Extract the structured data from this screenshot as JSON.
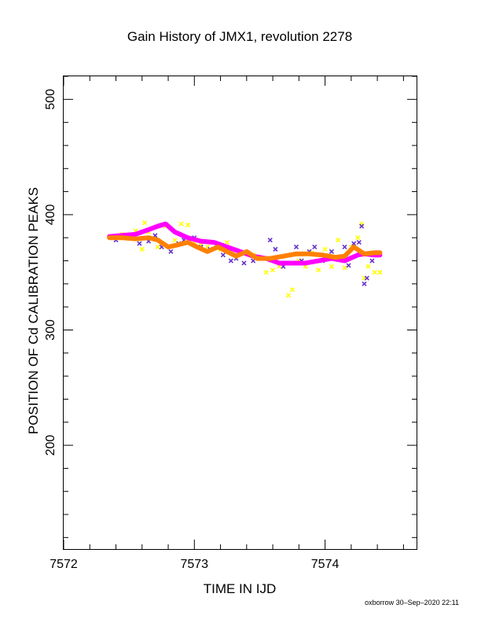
{
  "chart_data": {
    "type": "scatter",
    "title": "Gain History of JMX1, revolution 2278",
    "xlabel": "TIME IN IJD",
    "ylabel": "POSITION OF Cd CALIBRATION PEAKS",
    "xlim": [
      7572,
      7574.7
    ],
    "ylim": [
      110,
      520
    ],
    "x_ticks": [
      7572,
      7573,
      7574
    ],
    "y_ticks": [
      200,
      300,
      400,
      500
    ],
    "grid": false,
    "legend": "none",
    "series": [
      {
        "marker": "x",
        "color": "#ffff00",
        "x": [
          7572.35,
          7572.45,
          7572.55,
          7572.6,
          7572.62,
          7572.65,
          7572.72,
          7572.78,
          7572.85,
          7572.9,
          7572.95,
          7573.0,
          7573.05,
          7573.1,
          7573.2,
          7573.25,
          7573.3,
          7573.4,
          7573.45,
          7573.55,
          7573.6,
          7573.65,
          7573.72,
          7573.75,
          7573.8,
          7573.85,
          7573.9,
          7573.95,
          7574.0,
          7574.05,
          7574.1,
          7574.15,
          7574.2,
          7574.25,
          7574.28,
          7574.3,
          7574.33,
          7574.38,
          7574.42
        ],
        "y": [
          381,
          383,
          386,
          370,
          393,
          385,
          372,
          390,
          378,
          392,
          391,
          376,
          374,
          372,
          370,
          376,
          366,
          366,
          365,
          350,
          352,
          355,
          330,
          335,
          360,
          355,
          367,
          352,
          370,
          355,
          378,
          354,
          372,
          380,
          392,
          345,
          355,
          350,
          350
        ]
      },
      {
        "marker": "x",
        "color": "#6633cc",
        "x": [
          7572.4,
          7572.5,
          7572.58,
          7572.65,
          7572.7,
          7572.75,
          7572.82,
          7572.88,
          7572.92,
          7573.0,
          7573.05,
          7573.12,
          7573.18,
          7573.22,
          7573.28,
          7573.32,
          7573.38,
          7573.45,
          7573.52,
          7573.58,
          7573.62,
          7573.68,
          7573.72,
          7573.78,
          7573.82,
          7573.88,
          7573.92,
          7573.98,
          7574.05,
          7574.1,
          7574.15,
          7574.18,
          7574.22,
          7574.26,
          7574.28,
          7574.3,
          7574.32,
          7574.36,
          7574.4
        ],
        "y": [
          378,
          380,
          375,
          377,
          382,
          372,
          368,
          375,
          378,
          380,
          372,
          370,
          372,
          365,
          360,
          362,
          358,
          360,
          362,
          378,
          370,
          355,
          358,
          372,
          360,
          368,
          372,
          360,
          368,
          362,
          372,
          356,
          375,
          376,
          390,
          340,
          345,
          360,
          365
        ]
      },
      {
        "marker": "line",
        "color": "#ff00ff",
        "x": [
          7572.35,
          7572.45,
          7572.55,
          7572.65,
          7572.72,
          7572.78,
          7572.85,
          7572.95,
          7573.05,
          7573.15,
          7573.25,
          7573.35,
          7573.45,
          7573.55,
          7573.65,
          7573.75,
          7573.85,
          7573.95,
          7574.05,
          7574.15,
          7574.25,
          7574.3,
          7574.38,
          7574.42
        ],
        "y": [
          381,
          382,
          383,
          387,
          390,
          392,
          385,
          380,
          377,
          376,
          372,
          368,
          364,
          362,
          358,
          358,
          358,
          360,
          362,
          360,
          365,
          366,
          365,
          365
        ]
      },
      {
        "marker": "line",
        "color": "#ff8000",
        "x": [
          7572.35,
          7572.45,
          7572.55,
          7572.65,
          7572.72,
          7572.8,
          7572.88,
          7572.95,
          7573.02,
          7573.1,
          7573.18,
          7573.25,
          7573.32,
          7573.4,
          7573.48,
          7573.58,
          7573.68,
          7573.78,
          7573.88,
          7573.98,
          7574.08,
          7574.15,
          7574.22,
          7574.3,
          7574.38,
          7574.42
        ],
        "y": [
          380,
          380,
          379,
          380,
          378,
          372,
          374,
          376,
          372,
          368,
          372,
          368,
          364,
          368,
          362,
          362,
          364,
          366,
          366,
          365,
          363,
          364,
          372,
          366,
          367,
          367
        ]
      }
    ]
  },
  "footer": "oxborrow 30–Sep–2020 22:11"
}
